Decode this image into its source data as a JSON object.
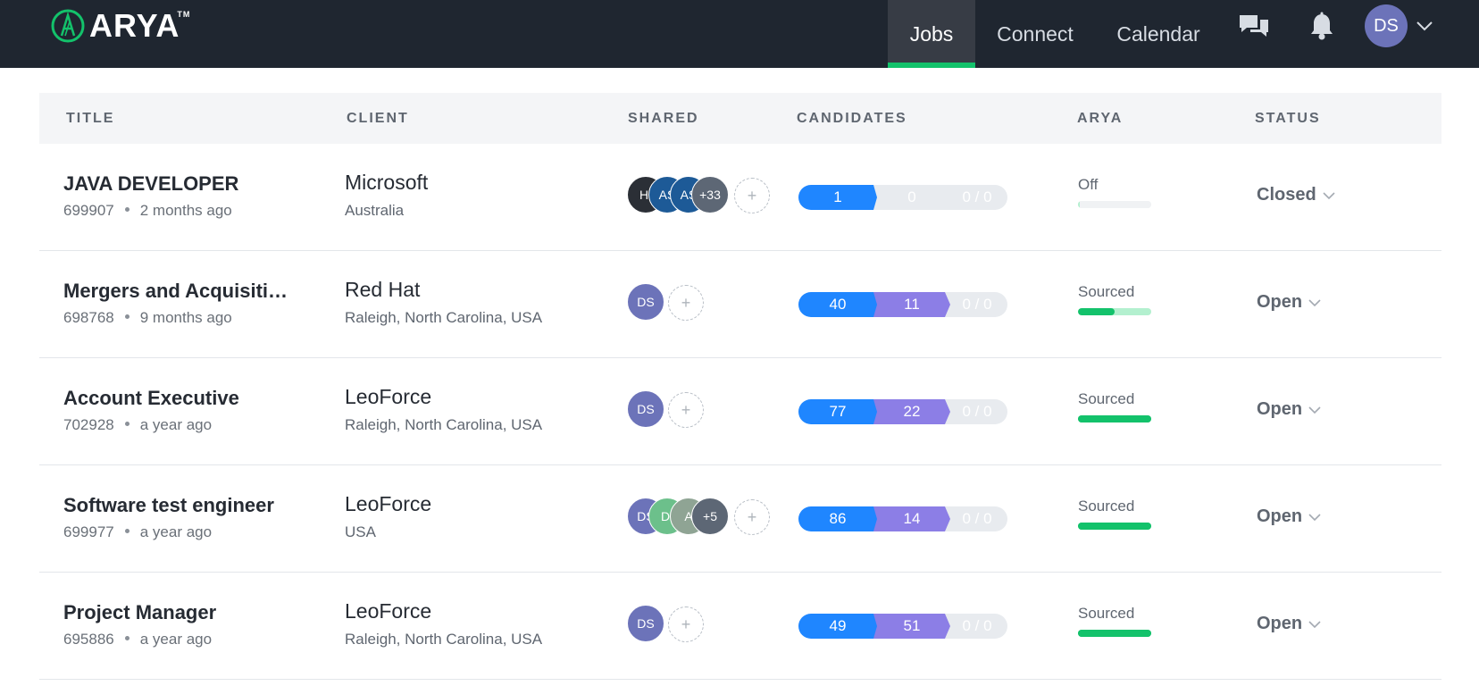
{
  "app": {
    "logo_text": "ARYA",
    "logo_tm": "TM",
    "brand_color": "#13c26b"
  },
  "nav": {
    "jobs": "Jobs",
    "connect": "Connect",
    "calendar": "Calendar",
    "active": "Jobs",
    "icons": [
      "chat-icon",
      "bell-icon",
      "chevron-down-icon"
    ],
    "user_initials": "DS",
    "user_avatar_color": "#6c73b9"
  },
  "table": {
    "headers": {
      "title": "TITLE",
      "client": "CLIENT",
      "shared": "SHARED",
      "candidates": "CANDIDATES",
      "arya": "ARYA",
      "status": "STATUS"
    },
    "add_icon": "+",
    "rows": [
      {
        "title": "JAVA DEVELOPER",
        "id": "699907",
        "age": "2 months ago",
        "client": "Microsoft",
        "location": "Australia",
        "shared": [
          {
            "initials": "HI",
            "color": "#2b2f36"
          },
          {
            "initials": "AS",
            "color": "#1d5a97"
          },
          {
            "initials": "AS",
            "color": "#1d5a97"
          }
        ],
        "shared_more": "+33",
        "candidates": {
          "sourced": "1",
          "shortlisted": "0",
          "connected": "0 / 0"
        },
        "arya_status": "Off",
        "arya_progress": 0.0,
        "status": "Closed"
      },
      {
        "title": "Mergers and Acquisitions Analyst",
        "id": "698768",
        "age": "9 months ago",
        "client": "Red Hat",
        "location": "Raleigh, North Carolina, USA",
        "shared": [
          {
            "initials": "DS",
            "color": "#6c73b9"
          }
        ],
        "shared_more": "",
        "candidates": {
          "sourced": "40",
          "shortlisted": "11",
          "connected": "0 / 0"
        },
        "arya_status": "Sourced",
        "arya_progress": 0.5,
        "status": "Open"
      },
      {
        "title": "Account Executive",
        "id": "702928",
        "age": "a year ago",
        "client": "LeoForce",
        "location": "Raleigh, North Carolina, USA",
        "shared": [
          {
            "initials": "DS",
            "color": "#6c73b9"
          }
        ],
        "shared_more": "",
        "candidates": {
          "sourced": "77",
          "shortlisted": "22",
          "connected": "0 / 0"
        },
        "arya_status": "Sourced",
        "arya_progress": 1.0,
        "status": "Open"
      },
      {
        "title": "Software test engineer",
        "id": "699977",
        "age": "a year ago",
        "client": "LeoForce",
        "location": "USA",
        "shared": [
          {
            "initials": "DS",
            "color": "#6c73b9"
          },
          {
            "initials": "DI",
            "color": "#6cc08b"
          },
          {
            "initials": "A",
            "color": "#8fa494"
          }
        ],
        "shared_more": "+5",
        "candidates": {
          "sourced": "86",
          "shortlisted": "14",
          "connected": "0 / 0"
        },
        "arya_status": "Sourced",
        "arya_progress": 1.0,
        "status": "Open"
      },
      {
        "title": "Project Manager",
        "id": "695886",
        "age": "a year ago",
        "client": "LeoForce",
        "location": "Raleigh, North Carolina, USA",
        "shared": [
          {
            "initials": "DS",
            "color": "#6c73b9"
          }
        ],
        "shared_more": "",
        "candidates": {
          "sourced": "49",
          "shortlisted": "51",
          "connected": "0 / 0"
        },
        "arya_status": "Sourced",
        "arya_progress": 1.0,
        "status": "Open"
      }
    ]
  }
}
